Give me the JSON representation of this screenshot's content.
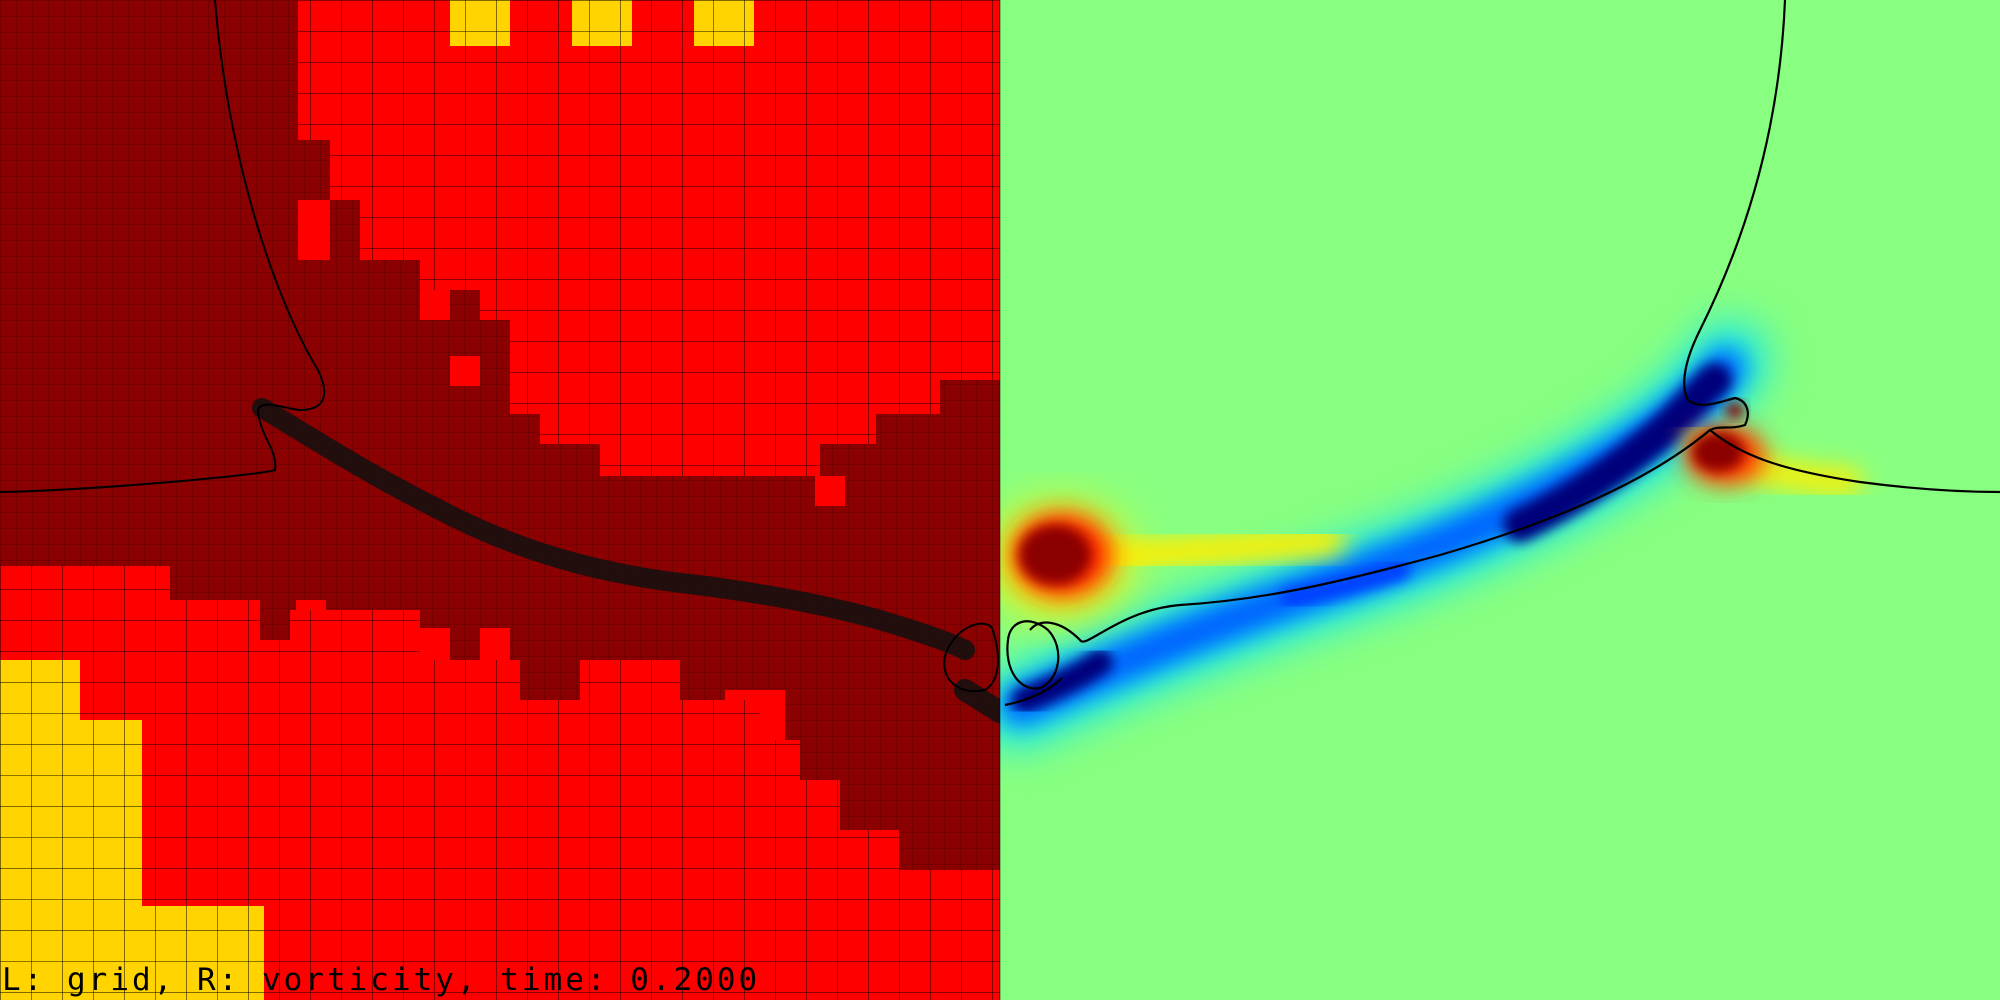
{
  "caption": "L: grid, R: vorticity, time: 0.2000",
  "panels": [
    {
      "side": "left",
      "content": "grid"
    },
    {
      "side": "right",
      "content": "vorticity"
    }
  ],
  "colors": {
    "level_coarse": "#ffd400",
    "level_medium": "#ff0000",
    "level_fine": "#8b0000",
    "vorticity_zero": "#88ff80",
    "vorticity_negative": "#00007a",
    "vorticity_positive": "#8b0000",
    "interface_line": "#000000"
  }
}
